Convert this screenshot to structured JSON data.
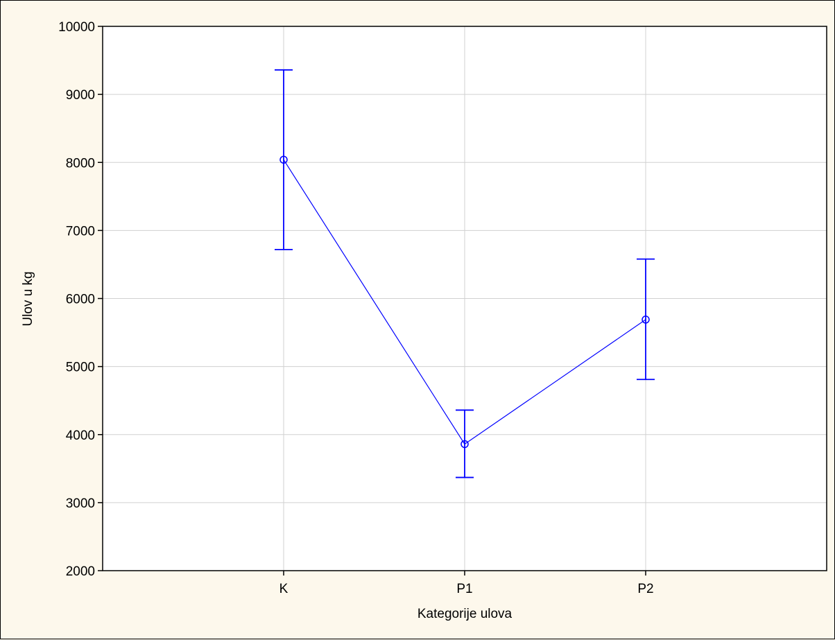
{
  "chart_data": {
    "type": "line",
    "title": "",
    "xlabel": "Kategorije ulova",
    "ylabel": "Ulov  u kg",
    "categories": [
      "K",
      "P1",
      "P2"
    ],
    "series": [
      {
        "values": [
          8040,
          3860,
          5690
        ],
        "error_low": [
          6720,
          3370,
          4810
        ],
        "error_high": [
          9360,
          4360,
          6580
        ]
      }
    ],
    "ylim": [
      2000,
      10000
    ],
    "yticks": [
      "2000",
      "3000",
      "4000",
      "5000",
      "6000",
      "7000",
      "8000",
      "9000",
      "10000"
    ],
    "grid": true,
    "colors": {
      "series": "#0000ff",
      "grid": "#d0d0d0",
      "plot_bg": "#ffffff",
      "page_bg": "#fdf8ec"
    }
  }
}
